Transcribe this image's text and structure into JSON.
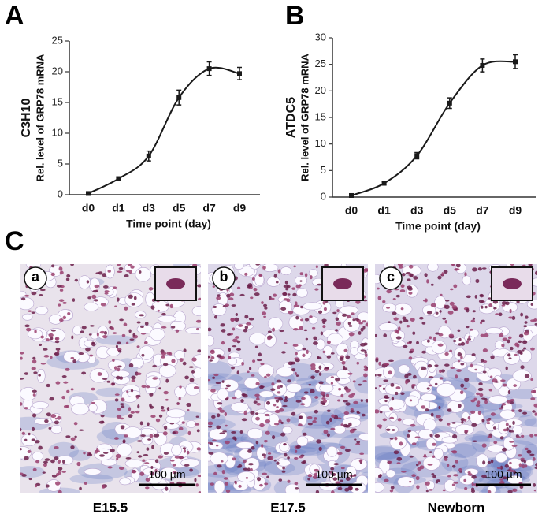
{
  "chart_data": [
    {
      "type": "line",
      "panel_label": "A",
      "ylabel_top": "C3H10",
      "ylabel": "Rel. level of GRP78 mRNA",
      "xlabel": "Time point (day)",
      "categories": [
        "d0",
        "d1",
        "d3",
        "d5",
        "d7",
        "d9"
      ],
      "series": [
        {
          "color": "#1a1a1a",
          "values": [
            0.2,
            2.6,
            6.3,
            15.8,
            20.5,
            19.7
          ],
          "errors": [
            0.2,
            0.3,
            0.8,
            1.2,
            1.1,
            1.0
          ]
        }
      ],
      "ylim": [
        0,
        25
      ],
      "yticks": [
        0,
        5,
        10,
        15,
        20,
        25
      ]
    },
    {
      "type": "line",
      "panel_label": "B",
      "ylabel_top": "ATDC5",
      "ylabel": "Rel. level of GRP78 mRNA",
      "xlabel": "Time point (day)",
      "categories": [
        "d0",
        "d1",
        "d3",
        "d5",
        "d7",
        "d9"
      ],
      "series": [
        {
          "color": "#1a1a1a",
          "values": [
            0.3,
            2.6,
            7.8,
            17.7,
            24.8,
            25.5
          ],
          "errors": [
            0.2,
            0.3,
            0.6,
            1.0,
            1.2,
            1.3
          ]
        }
      ],
      "ylim": [
        0,
        30
      ],
      "yticks": [
        0,
        5,
        10,
        15,
        20,
        25,
        30
      ]
    }
  ],
  "panel_c": {
    "label": "C",
    "images": [
      {
        "letter": "a",
        "scale": "100 µm",
        "caption": "E15.5"
      },
      {
        "letter": "b",
        "scale": "100 µm",
        "caption": "E17.5"
      },
      {
        "letter": "c",
        "scale": "100 µm",
        "caption": "Newborn"
      }
    ]
  }
}
